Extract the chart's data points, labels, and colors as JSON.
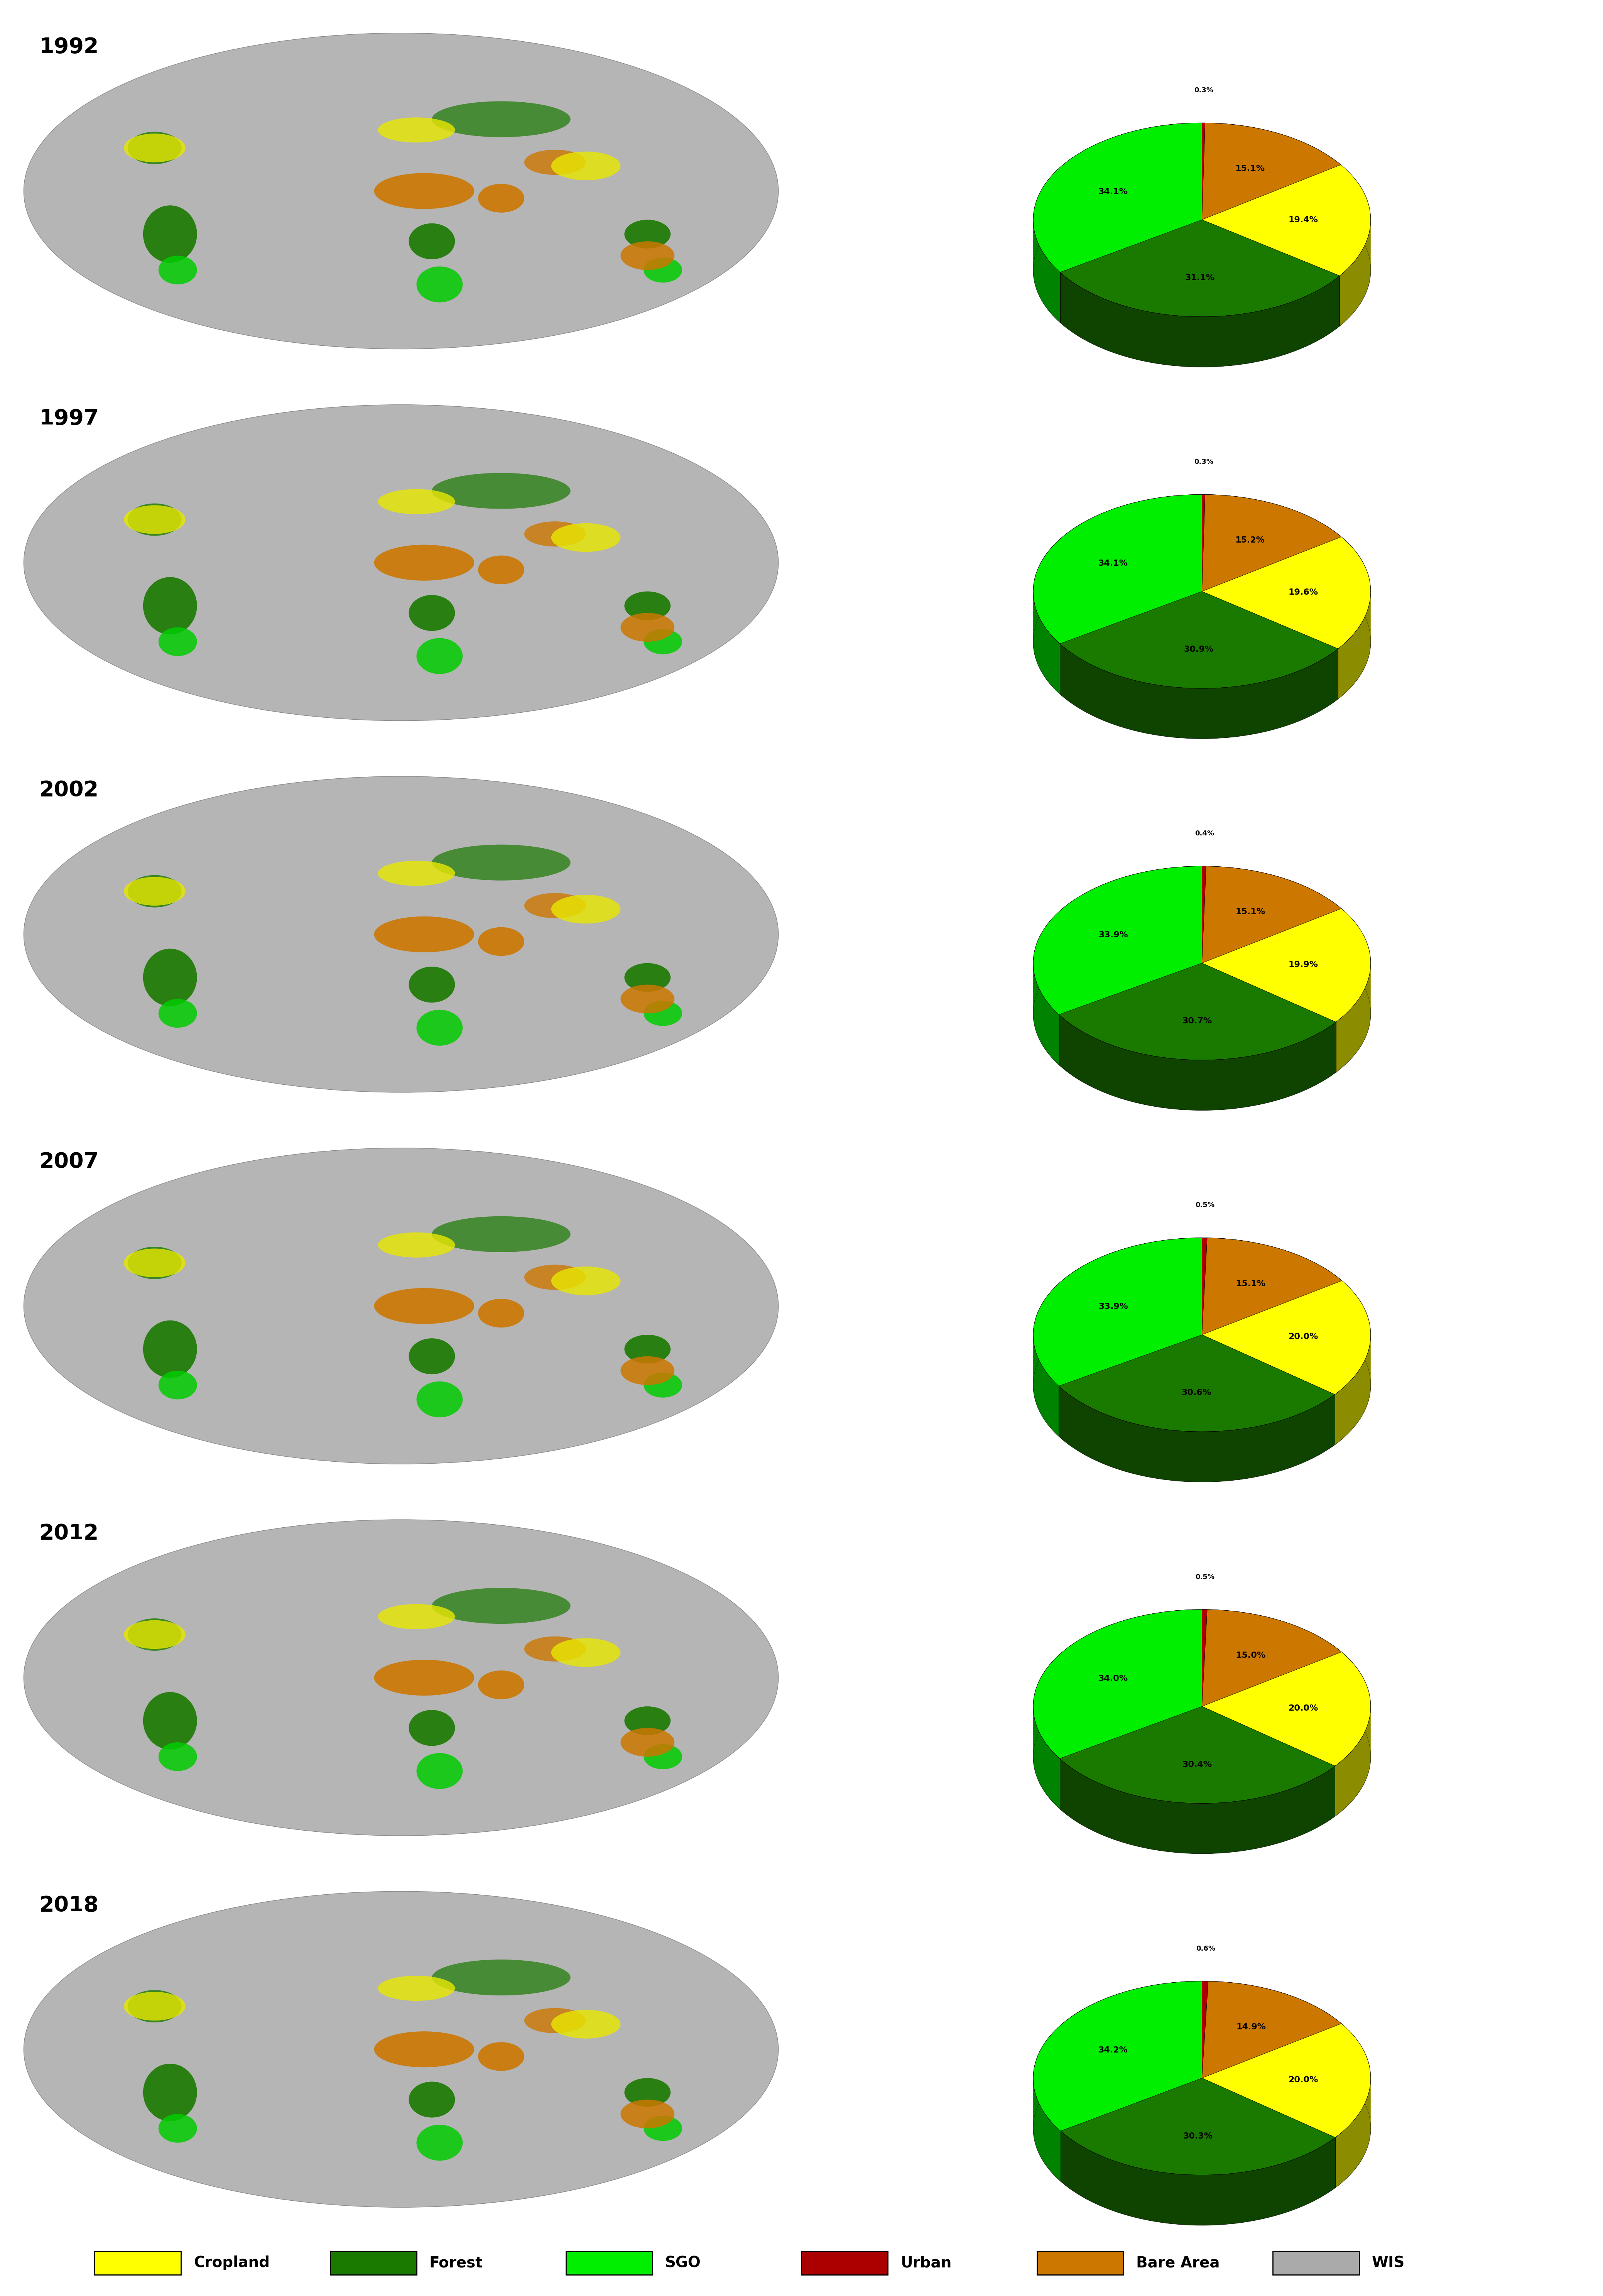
{
  "years": [
    "1992",
    "1997",
    "2002",
    "2007",
    "2012",
    "2018"
  ],
  "pie_data": [
    {
      "urban": 0.3,
      "bare": 15.1,
      "cropland": 19.4,
      "forest": 31.1,
      "sgo": 34.1
    },
    {
      "urban": 0.3,
      "bare": 15.2,
      "cropland": 19.6,
      "forest": 30.9,
      "sgo": 34.1
    },
    {
      "urban": 0.4,
      "bare": 15.1,
      "cropland": 19.9,
      "forest": 30.7,
      "sgo": 33.9
    },
    {
      "urban": 0.5,
      "bare": 15.1,
      "cropland": 20.0,
      "forest": 30.6,
      "sgo": 33.9
    },
    {
      "urban": 0.5,
      "bare": 15.0,
      "cropland": 20.0,
      "forest": 30.4,
      "sgo": 34.0
    },
    {
      "urban": 0.6,
      "bare": 14.9,
      "cropland": 20.0,
      "forest": 30.3,
      "sgo": 34.2
    }
  ],
  "colors": {
    "cropland": "#FFFF00",
    "forest": "#1a7a00",
    "sgo": "#00ee00",
    "urban": "#aa0000",
    "bare": "#cc7700",
    "wis": "#aaaaaa"
  },
  "pie_order": [
    "urban",
    "bare",
    "cropland",
    "forest",
    "sgo"
  ],
  "legend_labels": [
    "Cropland",
    "Forest",
    "SGO",
    "Urban",
    "Bare Area",
    "WIS"
  ],
  "legend_colors": [
    "#FFFF00",
    "#1a7a00",
    "#00ee00",
    "#aa0000",
    "#cc7700",
    "#aaaaaa"
  ],
  "background_color": "#ffffff",
  "map_bg_color": "#b8b8b8",
  "map_land_colors": {
    "forest_dark": "#1a7a00",
    "sgo": "#00cc00",
    "cropland": "#e8e800",
    "bare": "#cc7700",
    "urban": "#cc0000"
  }
}
